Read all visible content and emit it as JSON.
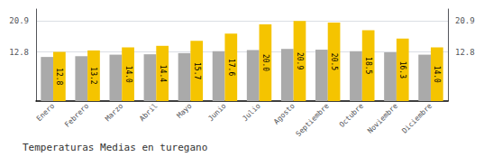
{
  "chart_data": {
    "type": "bar",
    "title": "Temperaturas Medias en turegano",
    "categories": [
      "Enero",
      "Febrero",
      "Marzo",
      "Abril",
      "Mayo",
      "Junio",
      "Julio",
      "Agosto",
      "Septiembre",
      "Octubre",
      "Noviembre",
      "Diciembre"
    ],
    "series": [
      {
        "color": "#AAAAAA",
        "values": [
          11.5,
          11.7,
          12.1,
          12.2,
          12.5,
          13.0,
          13.3,
          13.6,
          13.4,
          13.0,
          12.7,
          12.1
        ]
      },
      {
        "color": "#F5C400",
        "values": [
          12.8,
          13.2,
          14.0,
          14.4,
          15.7,
          17.6,
          20.0,
          20.9,
          20.5,
          18.5,
          16.3,
          14.0
        ],
        "data_labels": true,
        "value_labels": [
          "12.8",
          "13.2",
          "14.0",
          "14.4",
          "15.7",
          "17.6",
          "20.0",
          "20.9",
          "20.5",
          "18.5",
          "16.3",
          "14.0"
        ]
      }
    ],
    "ylim": [
      0,
      24
    ],
    "yticks": [
      12.8,
      20.9
    ],
    "y2lim": [
      0,
      24
    ],
    "y2ticks": [
      12.8,
      20.9
    ],
    "grid": true
  }
}
